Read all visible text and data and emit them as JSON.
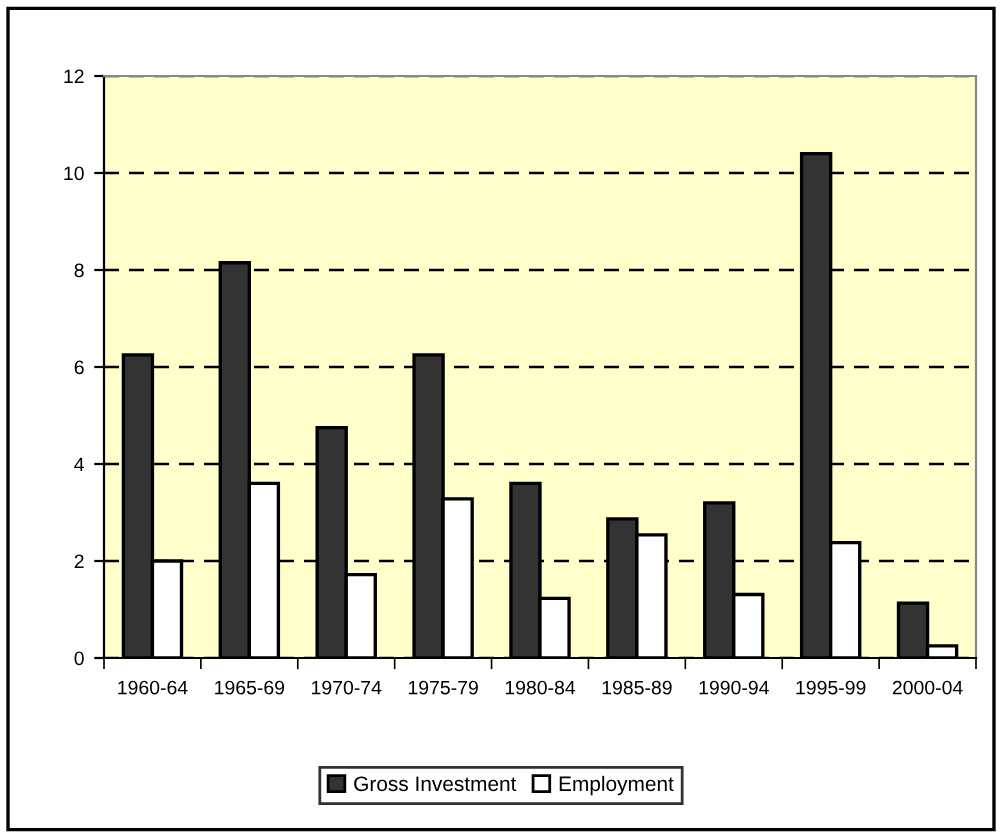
{
  "chart_data": {
    "type": "bar",
    "categories": [
      "1960-64",
      "1965-69",
      "1970-74",
      "1975-79",
      "1980-84",
      "1985-89",
      "1990-94",
      "1995-99",
      "2000-04"
    ],
    "series": [
      {
        "name": "Gross Investment",
        "color": "#333333",
        "values": [
          6.25,
          8.15,
          4.75,
          6.25,
          3.6,
          2.87,
          3.2,
          10.4,
          1.13
        ]
      },
      {
        "name": "Employment",
        "color": "#ffffff",
        "values": [
          2.0,
          3.6,
          1.72,
          3.28,
          1.23,
          2.54,
          1.31,
          2.38,
          0.25
        ]
      }
    ],
    "ylim": [
      0,
      12
    ],
    "yticks": [
      0,
      2,
      4,
      6,
      8,
      10,
      12
    ],
    "grid": "y",
    "legend": "bottom"
  }
}
